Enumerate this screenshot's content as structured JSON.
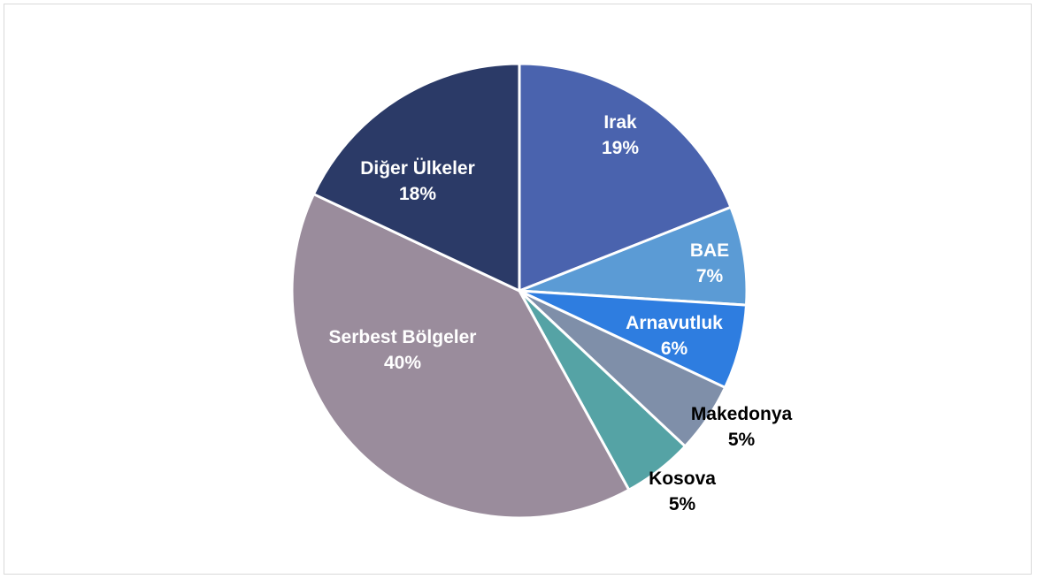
{
  "chart_data": {
    "type": "pie",
    "title": "",
    "slices": [
      {
        "name": "Irak",
        "pct_label": "19%",
        "value": 19,
        "color": "#4a63ae",
        "label_color": "#ffffff"
      },
      {
        "name": "BAE",
        "pct_label": "7%",
        "value": 7,
        "color": "#5b9bd5",
        "label_color": "#ffffff"
      },
      {
        "name": "Arnavutluk",
        "pct_label": "6%",
        "value": 6,
        "color": "#2e7de0",
        "label_color": "#ffffff"
      },
      {
        "name": "Makedonya",
        "pct_label": "5%",
        "value": 5,
        "color": "#7f8fa9",
        "label_color": "#000000"
      },
      {
        "name": "Kosova",
        "pct_label": "5%",
        "value": 5,
        "color": "#55a3a5",
        "label_color": "#000000"
      },
      {
        "name": "Serbest Bölgeler",
        "pct_label": "40%",
        "value": 40,
        "color": "#9a8c9c",
        "label_color": "#ffffff"
      },
      {
        "name": "Diğer Ülkeler",
        "pct_label": "18%",
        "value": 18,
        "color": "#2b3a67",
        "label_color": "#ffffff"
      }
    ],
    "start_angle_deg": 0,
    "direction": "clockwise",
    "legend": "none",
    "data_labels": "category name and percentage"
  }
}
